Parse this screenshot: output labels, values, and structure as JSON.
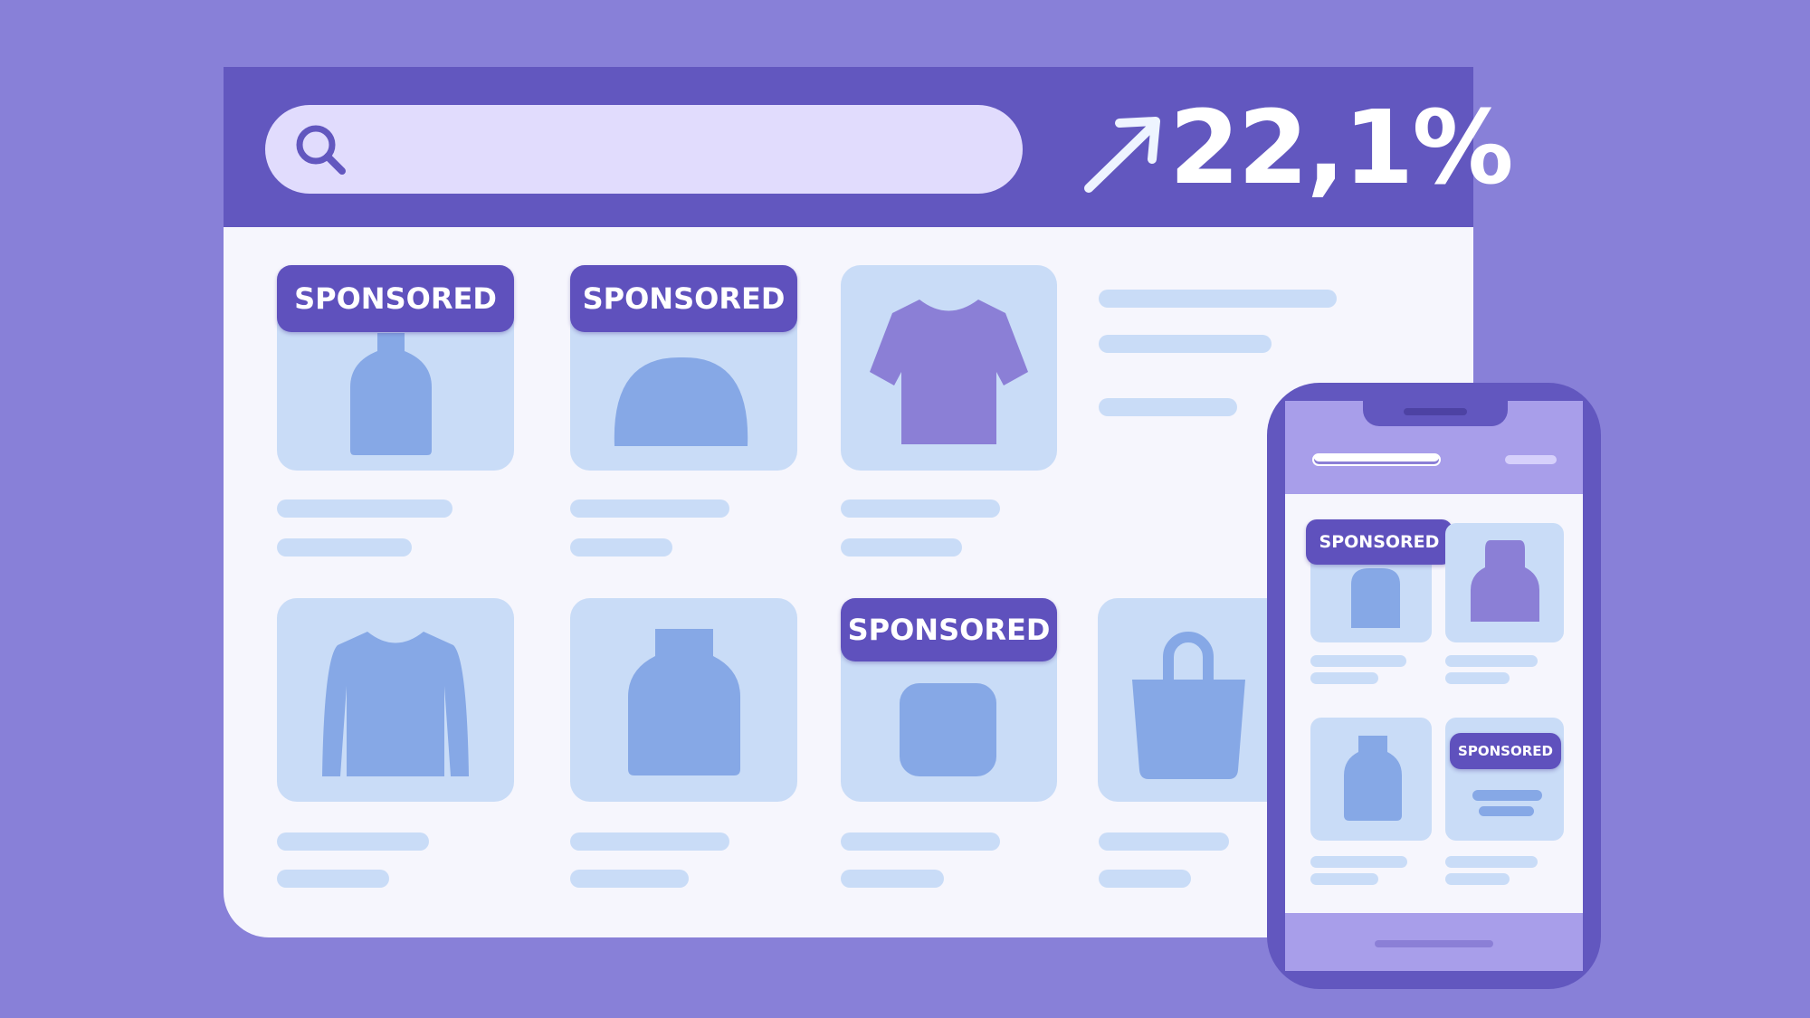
{
  "browser": {
    "search": {
      "placeholder": "",
      "icon": "search-icon"
    },
    "stat": {
      "value": "22,1%",
      "icon": "trend-up-arrow-icon"
    },
    "products": [
      {
        "sponsored": true,
        "icon": "bottle-icon"
      },
      {
        "sponsored": true,
        "icon": "cap-icon"
      },
      {
        "sponsored": false,
        "icon": "tshirt-icon"
      },
      {
        "sponsored": false,
        "icon": "sweater-icon"
      },
      {
        "sponsored": false,
        "icon": "bottle-icon"
      },
      {
        "sponsored": true,
        "icon": "box-icon"
      },
      {
        "sponsored": false,
        "icon": "bag-icon"
      }
    ],
    "badge_label": "SPONSORED"
  },
  "phone": {
    "badge_label": "SPONSORED",
    "products": [
      {
        "sponsored": true,
        "icon": "bottle-icon"
      },
      {
        "sponsored": false,
        "icon": "bottle-icon"
      },
      {
        "sponsored": false,
        "icon": "bottle-icon"
      },
      {
        "sponsored": true,
        "icon": "text-lines-icon"
      }
    ]
  },
  "colors": {
    "background": "#8880d8",
    "header": "#6257bf",
    "badge": "#5f51bd",
    "card": "#c9dcf7",
    "product_shape": "#86a8e6",
    "accent_shape": "#8b7fd6"
  }
}
